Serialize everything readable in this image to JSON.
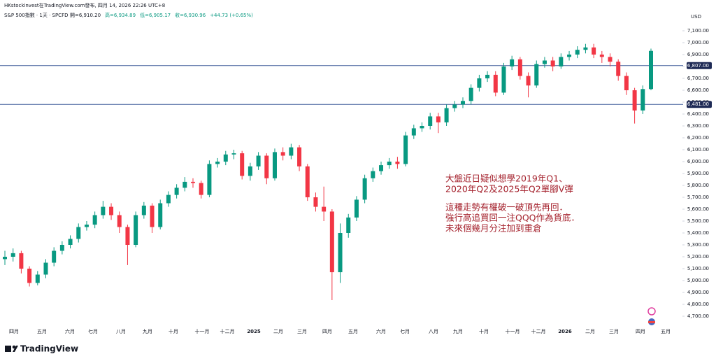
{
  "header": {
    "publisher": "HKstockinvest在TradingView.com發布, 四月 14, 2026 22:26 UTC+8",
    "symbol": "S&P 500指數 · 1天 · SPCFD",
    "ohlc": [
      "開=6,910.20",
      "高=6,934.89",
      "低=6,905.17",
      "收=6,930.96",
      "+44.73 (+0.65%)"
    ]
  },
  "chart_data": {
    "type": "candlestick",
    "currency": "USD",
    "up_color": "#089981",
    "down_color": "#f23645",
    "grid": false,
    "open": [
      5180,
      5200,
      5230,
      5100,
      4980,
      5050,
      5150,
      5250,
      5300,
      5350,
      5450,
      5470,
      5550,
      5620,
      5550,
      5450,
      5300,
      5550,
      5630,
      5450,
      5650,
      5720,
      5780,
      5830,
      5820,
      5720,
      5980,
      6000,
      6060,
      6070,
      5880,
      5960,
      6050,
      5860,
      6080,
      6050,
      6120,
      5960,
      5700,
      5620,
      5580,
      5070,
      5400,
      5530,
      5680,
      5860,
      5920,
      5970,
      6000,
      5980,
      6220,
      6280,
      6300,
      6380,
      6330,
      6450,
      6480,
      6510,
      6620,
      6700,
      6730,
      6580,
      6800,
      6860,
      6720,
      6640,
      6820,
      6850,
      6800,
      6880,
      6900,
      6940,
      6960,
      6900,
      6880,
      6840,
      6720,
      6600,
      6430,
      6610
    ],
    "high": [
      5250,
      5270,
      5250,
      5120,
      5080,
      5180,
      5280,
      5330,
      5380,
      5480,
      5500,
      5580,
      5670,
      5650,
      5580,
      5470,
      5580,
      5660,
      5650,
      5680,
      5750,
      5810,
      5870,
      5860,
      5840,
      6010,
      6030,
      6090,
      6100,
      6090,
      5990,
      6080,
      6070,
      6110,
      6120,
      6150,
      6140,
      5980,
      5740,
      5790,
      5600,
      5480,
      5560,
      5710,
      5890,
      5950,
      6000,
      6030,
      6040,
      6250,
      6310,
      6330,
      6410,
      6410,
      6480,
      6510,
      6540,
      6650,
      6730,
      6760,
      6760,
      6830,
      6890,
      6880,
      6750,
      6850,
      6880,
      6880,
      6910,
      6930,
      6970,
      6990,
      6990,
      6930,
      6910,
      6860,
      6750,
      6620,
      6640,
      6950
    ],
    "low": [
      5130,
      5160,
      5060,
      4950,
      4960,
      5020,
      5120,
      5220,
      5270,
      5320,
      5420,
      5440,
      5520,
      5510,
      5400,
      5130,
      5280,
      5520,
      5400,
      5430,
      5620,
      5690,
      5750,
      5780,
      5690,
      5700,
      5950,
      5970,
      6020,
      5850,
      5840,
      5930,
      5810,
      5840,
      6010,
      6020,
      5920,
      5670,
      5580,
      5500,
      4835,
      4980,
      5360,
      5500,
      5650,
      5830,
      5890,
      5940,
      5940,
      5960,
      6190,
      6250,
      6270,
      6240,
      6300,
      6420,
      6450,
      6480,
      6590,
      6670,
      6550,
      6560,
      6770,
      6690,
      6540,
      6620,
      6790,
      6760,
      6780,
      6850,
      6870,
      6910,
      6870,
      6830,
      6800,
      6680,
      6560,
      6320,
      6400,
      6600
    ],
    "close": [
      5200,
      5230,
      5100,
      4980,
      5050,
      5150,
      5250,
      5300,
      5350,
      5450,
      5470,
      5550,
      5620,
      5550,
      5450,
      5300,
      5550,
      5630,
      5450,
      5650,
      5720,
      5780,
      5830,
      5820,
      5720,
      5980,
      6000,
      6060,
      6070,
      5880,
      5960,
      6050,
      5860,
      6080,
      6050,
      6120,
      5960,
      5700,
      5620,
      5580,
      5070,
      5400,
      5530,
      5680,
      5860,
      5920,
      5970,
      6000,
      5980,
      6220,
      6280,
      6300,
      6380,
      6330,
      6450,
      6480,
      6510,
      6620,
      6700,
      6730,
      6580,
      6800,
      6860,
      6720,
      6640,
      6820,
      6850,
      6800,
      6880,
      6900,
      6940,
      6960,
      6900,
      6880,
      6840,
      6720,
      6600,
      6430,
      6610,
      6931
    ],
    "ylim": [
      4700,
      7100
    ],
    "yticks": [
      {
        "value": 4700,
        "label": "4,700.00"
      },
      {
        "value": 4800,
        "label": "4,800.00"
      },
      {
        "value": 4900,
        "label": "4,900.00"
      },
      {
        "value": 5000,
        "label": "5,000.00"
      },
      {
        "value": 5100,
        "label": "5,100.00"
      },
      {
        "value": 5200,
        "label": "5,200.00"
      },
      {
        "value": 5300,
        "label": "5,300.00"
      },
      {
        "value": 5400,
        "label": "5,400.00"
      },
      {
        "value": 5500,
        "label": "5,500.00"
      },
      {
        "value": 5600,
        "label": "5,600.00"
      },
      {
        "value": 5700,
        "label": "5,700.00"
      },
      {
        "value": 5800,
        "label": "5,800.00"
      },
      {
        "value": 5900,
        "label": "5,900.00"
      },
      {
        "value": 6000,
        "label": "6,000.00"
      },
      {
        "value": 6100,
        "label": "6,100.00"
      },
      {
        "value": 6200,
        "label": "6,200.00"
      },
      {
        "value": 6300,
        "label": "6,300.00"
      },
      {
        "value": 6400,
        "label": "6,400.00"
      },
      {
        "value": 6500,
        "label": "6,500.00"
      },
      {
        "value": 6600,
        "label": "6,600.00"
      },
      {
        "value": 6700,
        "label": "6,700.00"
      },
      {
        "value": 6800,
        "label": "6,800.00"
      },
      {
        "value": 6900,
        "label": "6,900.00"
      },
      {
        "value": 7000,
        "label": "7,000.00"
      },
      {
        "value": 7100,
        "label": "7,100.00"
      }
    ],
    "hlines": [
      {
        "value": 6807,
        "label": "6,807.00"
      },
      {
        "value": 6481,
        "label": "6,481.00"
      }
    ],
    "hline_color": "#3d5a99",
    "x_axis_labels": [
      "四月",
      "五月",
      "六月",
      "七月",
      "八月",
      "九月",
      "十月",
      "十一月",
      "十二月",
      "2025",
      "二月",
      "三月",
      "四月",
      "五月",
      "六月",
      "七月",
      "八月",
      "九月",
      "十月",
      "十一月",
      "十二月",
      "2026",
      "二月",
      "三月",
      "四月",
      "五月"
    ],
    "annotation": [
      "大盤近日疑似想學2019年Q1、",
      "2020年Q2及2025年Q2單腳V彈",
      "這種走勢有權破一破頂先再回．",
      "強行高追買回一注QQQ作為貨底．",
      "未來個幾月分注加到重倉"
    ]
  },
  "branding": "TradingView"
}
